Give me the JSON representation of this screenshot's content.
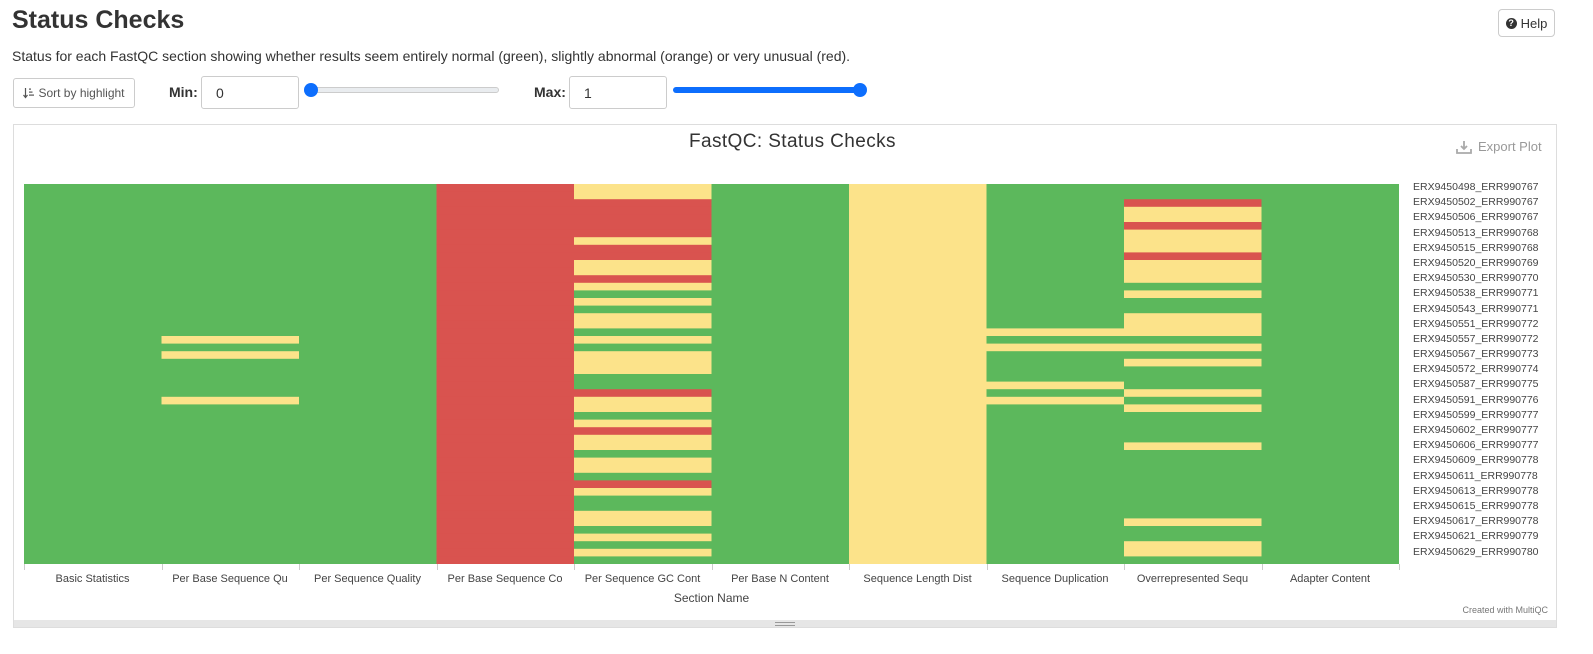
{
  "page": {
    "title": "Status Checks",
    "help_label": "Help",
    "description": "Status for each FastQC section showing whether results seem entirely normal (green), slightly abnormal (orange) or very unusual (red)."
  },
  "controls": {
    "sort_label": "Sort by highlight",
    "min_label": "Min:",
    "min_value": "0",
    "max_label": "Max:",
    "max_value": "1",
    "min_slider_value": 0,
    "max_slider_value": 1
  },
  "plot": {
    "export_label": "Export Plot",
    "credit": "Created with MultiQC"
  },
  "colors": {
    "pass": "#5cb85c",
    "warn": "#fce38a",
    "fail": "#d9534f",
    "accent": "#0d6efd"
  },
  "chart_data": {
    "type": "heatmap",
    "title": "FastQC: Status Checks",
    "xlabel": "Section Name",
    "ylabel": "",
    "categories": [
      "Basic Statistics",
      "Per Base Sequence Qu",
      "Per Sequence Quality",
      "Per Base Sequence Co",
      "Per Sequence GC Cont",
      "Per Base N Content",
      "Sequence Length Dist",
      "Sequence Duplication",
      "Overrepresented Sequ",
      "Adapter Content"
    ],
    "sample_labels": [
      "ERX9450498_ERR990767",
      "ERX9450502_ERR990767",
      "ERX9450506_ERR990767",
      "ERX9450513_ERR990768",
      "ERX9450515_ERR990768",
      "ERX9450520_ERR990769",
      "ERX9450530_ERR990770",
      "ERX9450538_ERR990771",
      "ERX9450543_ERR990771",
      "ERX9450551_ERR990772",
      "ERX9450557_ERR990772",
      "ERX9450567_ERR990773",
      "ERX9450572_ERR990774",
      "ERX9450587_ERR990775",
      "ERX9450591_ERR990776",
      "ERX9450599_ERR990777",
      "ERX9450602_ERR990777",
      "ERX9450606_ERR990777",
      "ERX9450609_ERR990778",
      "ERX9450611_ERR990778",
      "ERX9450613_ERR990778",
      "ERX9450615_ERR990778",
      "ERX9450617_ERR990778",
      "ERX9450621_ERR990779",
      "ERX9450629_ERR990780"
    ],
    "n_rows": 50,
    "value_scale": {
      "fail": 0,
      "warn": 0.5,
      "pass": 1
    },
    "column_default": [
      "pass",
      "pass",
      "pass",
      "fail",
      "warn",
      "pass",
      "warn",
      "pass",
      "pass",
      "pass"
    ],
    "exceptions": [
      [],
      [
        [
          20,
          "warn"
        ],
        [
          22,
          "warn"
        ],
        [
          28,
          "warn"
        ]
      ],
      [],
      [],
      [
        [
          0,
          "warn"
        ],
        [
          1,
          "warn"
        ],
        [
          2,
          "fail"
        ],
        [
          3,
          "fail"
        ],
        [
          4,
          "fail"
        ],
        [
          5,
          "fail"
        ],
        [
          6,
          "fail"
        ],
        [
          7,
          "warn"
        ],
        [
          8,
          "fail"
        ],
        [
          9,
          "fail"
        ],
        [
          10,
          "warn"
        ],
        [
          11,
          "warn"
        ],
        [
          12,
          "fail"
        ],
        [
          13,
          "warn"
        ],
        [
          14,
          "pass"
        ],
        [
          15,
          "warn"
        ],
        [
          16,
          "pass"
        ],
        [
          17,
          "warn"
        ],
        [
          18,
          "warn"
        ],
        [
          19,
          "pass"
        ],
        [
          20,
          "warn"
        ],
        [
          21,
          "pass"
        ],
        [
          22,
          "warn"
        ],
        [
          23,
          "warn"
        ],
        [
          24,
          "warn"
        ],
        [
          25,
          "pass"
        ],
        [
          26,
          "pass"
        ],
        [
          27,
          "fail"
        ],
        [
          28,
          "warn"
        ],
        [
          29,
          "warn"
        ],
        [
          30,
          "pass"
        ],
        [
          31,
          "warn"
        ],
        [
          32,
          "fail"
        ],
        [
          33,
          "warn"
        ],
        [
          34,
          "warn"
        ],
        [
          35,
          "pass"
        ],
        [
          36,
          "warn"
        ],
        [
          37,
          "warn"
        ],
        [
          38,
          "pass"
        ],
        [
          39,
          "fail"
        ],
        [
          40,
          "warn"
        ],
        [
          41,
          "pass"
        ],
        [
          42,
          "pass"
        ],
        [
          43,
          "warn"
        ],
        [
          44,
          "warn"
        ],
        [
          45,
          "pass"
        ],
        [
          46,
          "warn"
        ],
        [
          47,
          "pass"
        ],
        [
          48,
          "warn"
        ],
        [
          49,
          "pass"
        ]
      ],
      [],
      [],
      [
        [
          19,
          "warn"
        ],
        [
          21,
          "warn"
        ],
        [
          26,
          "warn"
        ],
        [
          28,
          "warn"
        ]
      ],
      [
        [
          2,
          "fail"
        ],
        [
          3,
          "warn"
        ],
        [
          4,
          "warn"
        ],
        [
          5,
          "fail"
        ],
        [
          6,
          "warn"
        ],
        [
          7,
          "warn"
        ],
        [
          8,
          "warn"
        ],
        [
          9,
          "fail"
        ],
        [
          10,
          "warn"
        ],
        [
          11,
          "warn"
        ],
        [
          12,
          "warn"
        ],
        [
          14,
          "warn"
        ],
        [
          17,
          "warn"
        ],
        [
          18,
          "warn"
        ],
        [
          19,
          "warn"
        ],
        [
          21,
          "warn"
        ],
        [
          23,
          "warn"
        ],
        [
          27,
          "warn"
        ],
        [
          29,
          "warn"
        ],
        [
          34,
          "warn"
        ],
        [
          44,
          "warn"
        ],
        [
          47,
          "warn"
        ],
        [
          48,
          "warn"
        ]
      ],
      []
    ]
  }
}
